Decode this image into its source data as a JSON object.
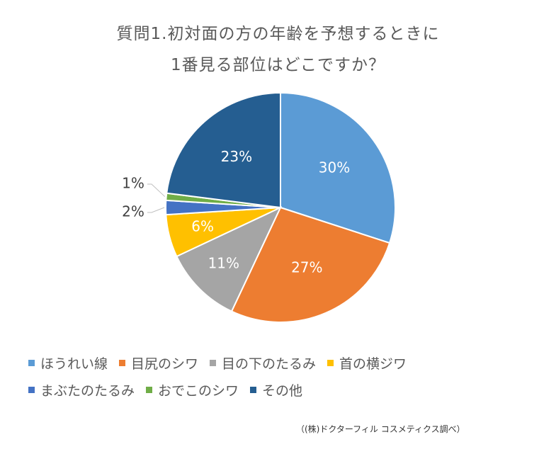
{
  "chart_data": {
    "type": "pie",
    "title": "質問1.初対面の方の年齢を予想するときに\n1番見る部位はどこですか？",
    "title_lines": [
      "質問1.初対面の方の年齢を予想するときに",
      "1番見る部位はどこですか？"
    ],
    "categories": [
      "ほうれい線",
      "目尻のシワ",
      "目の下のたるみ",
      "首の横ジワ",
      "まぶたのたるみ",
      "おでこのシワ",
      "その他"
    ],
    "values": [
      30,
      27,
      11,
      6,
      2,
      1,
      23
    ],
    "data_labels": [
      "30%",
      "27%",
      "11%",
      "6%",
      "2%",
      "1%",
      "23%"
    ],
    "colors": [
      "#5b9bd5",
      "#ed7d31",
      "#a5a5a5",
      "#ffc000",
      "#4472c4",
      "#70ad47",
      "#255e91"
    ],
    "legend_placement": "bottom",
    "start_angle": "12 o'clock",
    "direction": "clockwise"
  },
  "source_note": "（(株)ドクターフィル コスメティクス調べ）"
}
